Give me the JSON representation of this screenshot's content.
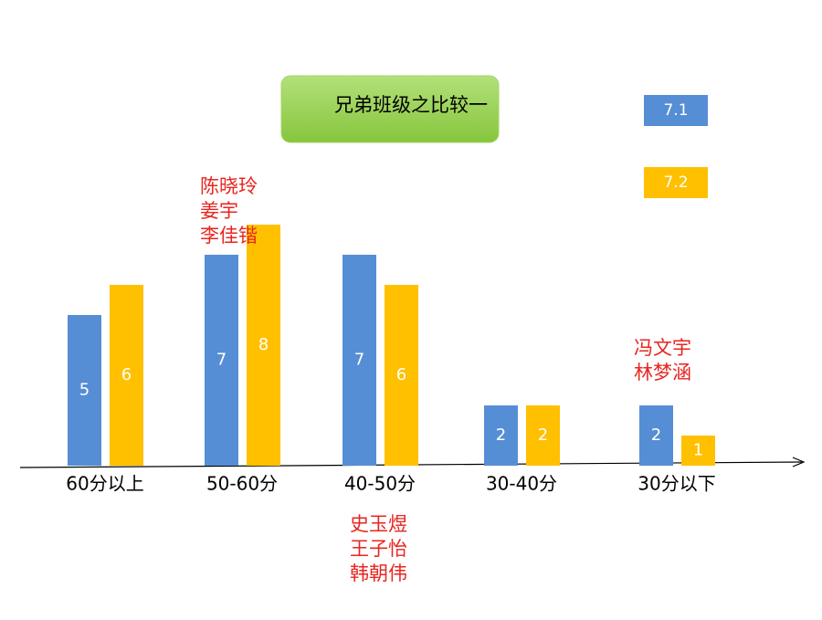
{
  "chart_data": {
    "type": "bar",
    "title": "兄弟班级之比较一",
    "categories": [
      "60分以上",
      "50-60分",
      "40-50分",
      "30-40分",
      "30分以下"
    ],
    "series": [
      {
        "name": "7.1",
        "color": "#558ed5",
        "values": [
          5,
          7,
          7,
          2,
          2
        ]
      },
      {
        "name": "7.2",
        "color": "#ffc000",
        "values": [
          6,
          8,
          6,
          2,
          1
        ]
      }
    ],
    "annotations": [
      {
        "lines": [
          "陈晓玲",
          "姜宇",
          "李佳锴"
        ]
      },
      {
        "lines": [
          "史玉煜",
          "王子怡",
          "韩朝伟"
        ]
      },
      {
        "lines": [
          "冯文宇",
          "林梦涵"
        ]
      }
    ]
  }
}
